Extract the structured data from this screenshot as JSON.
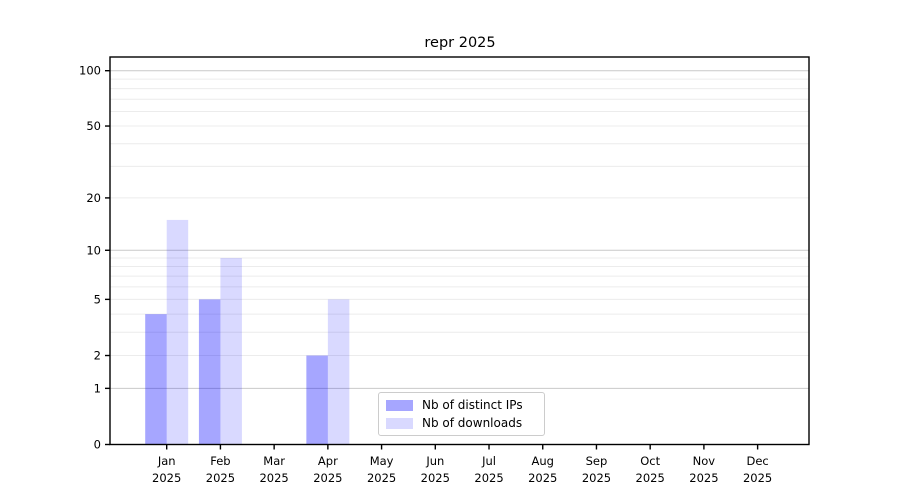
{
  "chart_data": {
    "type": "bar",
    "title": "repr 2025",
    "categories": [
      "Jan",
      "Feb",
      "Mar",
      "Apr",
      "May",
      "Jun",
      "Jul",
      "Aug",
      "Sep",
      "Oct",
      "Nov",
      "Dec"
    ],
    "category_year": "2025",
    "series": [
      {
        "name": "Nb of distinct IPs",
        "color": "rgba(0,0,255,0.35)",
        "values": [
          4,
          5,
          0,
          2,
          0,
          0,
          0,
          0,
          0,
          0,
          0,
          0
        ]
      },
      {
        "name": "Nb of downloads",
        "color": "rgba(0,0,255,0.15)",
        "values": [
          15,
          9,
          0,
          5,
          0,
          0,
          0,
          0,
          0,
          0,
          0,
          0
        ]
      }
    ],
    "yscale": "log1p",
    "ylim": [
      0,
      118
    ],
    "yticks": [
      {
        "v": 100,
        "label": "100"
      },
      {
        "v": 50,
        "label": "50"
      },
      {
        "v": 20,
        "label": "20"
      },
      {
        "v": 10,
        "label": "10"
      },
      {
        "v": 5,
        "label": "5"
      },
      {
        "v": 2,
        "label": "2"
      },
      {
        "v": 1,
        "label": "1"
      },
      {
        "v": 0,
        "label": "0"
      }
    ],
    "grid": {
      "major_values": [
        1,
        10,
        100
      ],
      "minor_values": [
        2,
        3,
        4,
        5,
        6,
        7,
        8,
        9,
        20,
        30,
        40,
        50,
        60,
        70,
        80,
        90
      ],
      "major_color": "#c9c9c9",
      "minor_color": "#ececec"
    },
    "legend_position": "lower center",
    "axis_color": "#000000"
  }
}
